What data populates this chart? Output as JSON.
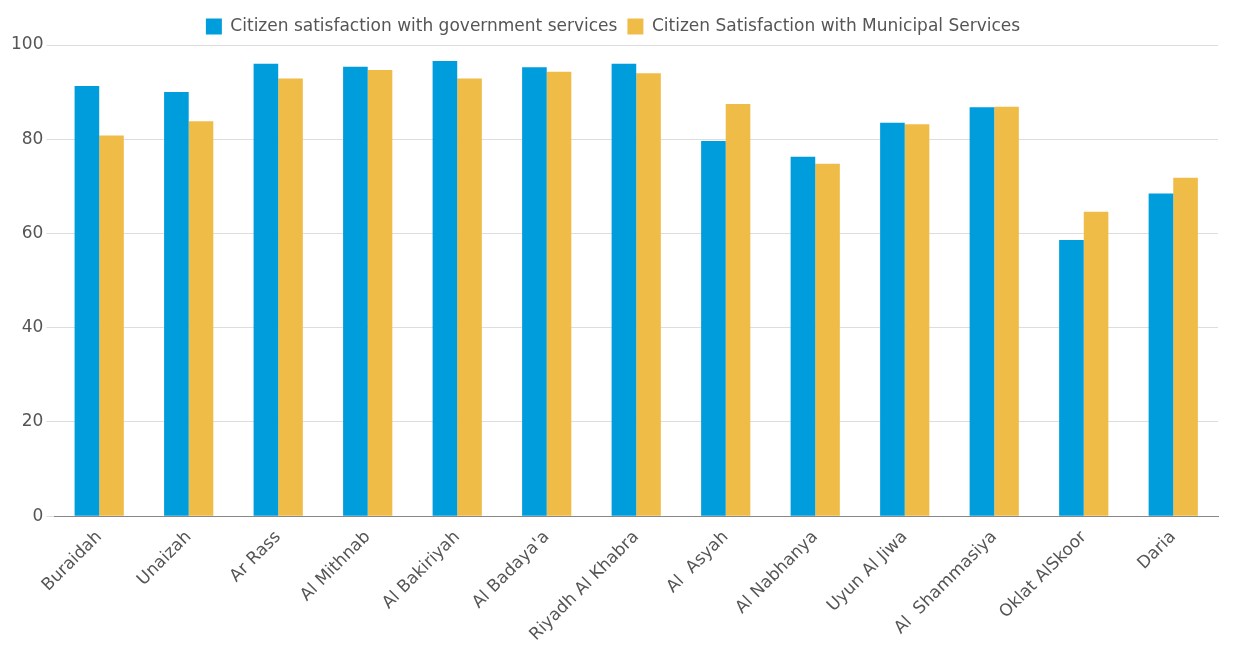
{
  "chart_data": {
    "type": "bar",
    "categories": [
      "Buraidah",
      "Unaizah",
      "Ar Rass",
      "Al Mithnab",
      "Al Bakiriyah",
      "Al Badaya'a",
      "Riyadh Al Khabra",
      "Al  Asyah",
      "Al Nabhanya",
      "Uyun Al Jiwa",
      "Al  Shammasiya",
      "Oklat AlSkoor",
      "Daria"
    ],
    "series": [
      {
        "name": "Citizen satisfaction with government services",
        "color": "#009ddc",
        "values": [
          91.3,
          90.0,
          96.0,
          95.4,
          96.6,
          95.3,
          96.0,
          79.6,
          76.3,
          83.5,
          86.8,
          58.6,
          68.5
        ]
      },
      {
        "name": "Citizen Satisfaction with Municipal Services",
        "color": "#f0bc48",
        "values": [
          80.8,
          83.8,
          92.9,
          94.7,
          92.9,
          94.3,
          94.0,
          87.5,
          74.8,
          83.2,
          86.9,
          64.6,
          71.8
        ]
      }
    ],
    "ylim": [
      0,
      100
    ],
    "yticks": [
      0,
      20,
      40,
      60,
      80,
      100
    ],
    "grid": "y",
    "legend": "top"
  }
}
